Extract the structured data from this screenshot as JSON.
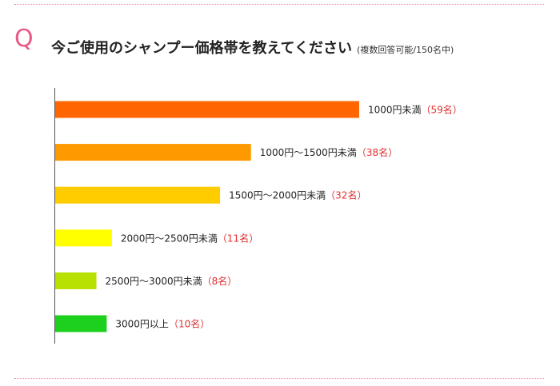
{
  "question": {
    "mark": "Q",
    "text": "今ご使用のシャンプー価格帯を教えてください",
    "note": "(複数回答可能/150名中)"
  },
  "colors": {
    "accent": "#e85a85",
    "count_text": "#e03030",
    "axis": "#555555"
  },
  "chart_data": {
    "type": "bar",
    "orientation": "horizontal",
    "title": "",
    "xlabel": "",
    "ylabel": "",
    "grid": false,
    "legend": "none",
    "xlim": [
      0,
      70
    ],
    "bars": [
      {
        "label": "1000円未満",
        "count_text": "（59名）",
        "value": 59,
        "color": "#ff6600"
      },
      {
        "label": "1000円～1500円未満",
        "count_text": "（38名）",
        "value": 38,
        "color": "#ff9900"
      },
      {
        "label": "1500円～2000円未満",
        "count_text": "（32名）",
        "value": 32,
        "color": "#ffcc00"
      },
      {
        "label": "2000円～2500円未満",
        "count_text": "（11名）",
        "value": 11,
        "color": "#ffff00"
      },
      {
        "label": "2500円～3000円未満",
        "count_text": "（8名）",
        "value": 8,
        "color": "#b8e000"
      },
      {
        "label": "3000円以上",
        "count_text": "（10名）",
        "value": 10,
        "color": "#1ed01e"
      }
    ]
  }
}
